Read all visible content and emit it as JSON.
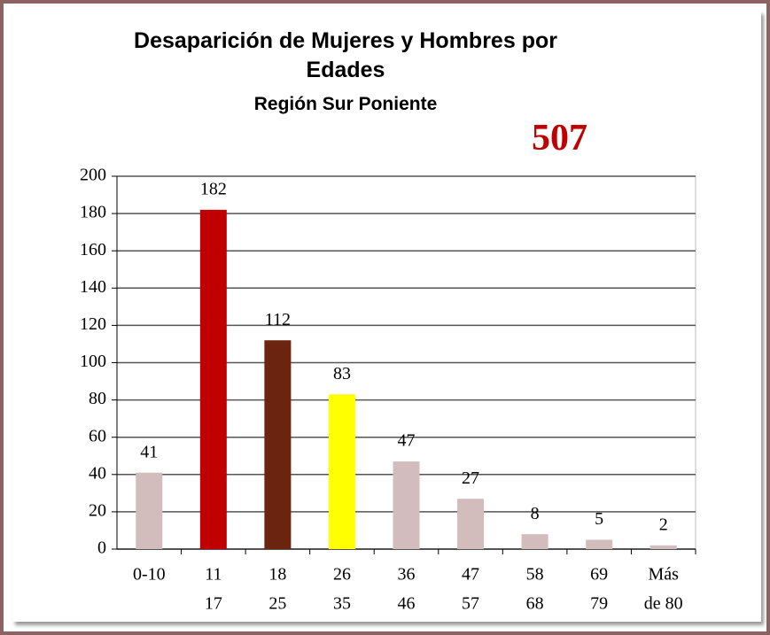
{
  "chart_data": {
    "type": "bar",
    "title": "Desaparición de Mujeres y Hombres por Edades",
    "subtitle": "Región Sur Poniente",
    "annotation": "507",
    "categories": [
      [
        "0-10"
      ],
      [
        "11",
        "17"
      ],
      [
        "18",
        "25"
      ],
      [
        "26",
        "35"
      ],
      [
        "36",
        "46"
      ],
      [
        "47",
        "57"
      ],
      [
        "58",
        "68"
      ],
      [
        "69",
        "79"
      ],
      [
        "Más",
        "de 80"
      ]
    ],
    "values": [
      41,
      182,
      112,
      83,
      47,
      27,
      8,
      5,
      2
    ],
    "colors": [
      "#d3bcbc",
      "#c00000",
      "#6b2410",
      "#ffff00",
      "#d3bcbc",
      "#d3bcbc",
      "#d3bcbc",
      "#d3bcbc",
      "#d3bcbc"
    ],
    "ylim": [
      0,
      200
    ],
    "yticks": [
      0,
      20,
      40,
      60,
      80,
      100,
      120,
      140,
      160,
      180,
      200
    ],
    "grid": true
  }
}
